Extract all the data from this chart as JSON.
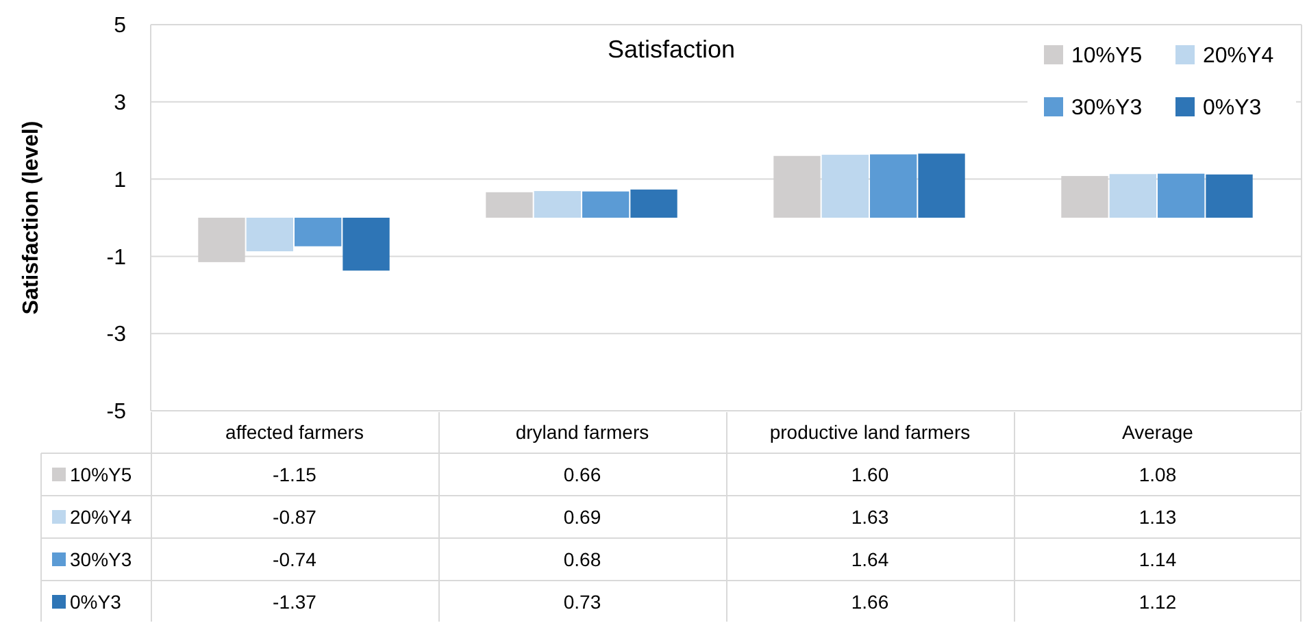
{
  "chart_data": {
    "type": "bar",
    "title": "Satisfaction",
    "ylabel": "Satisfaction (level)",
    "categories": [
      "affected farmers",
      "dryland farmers",
      "productive land farmers",
      "Average"
    ],
    "series": [
      {
        "name": "10%Y5",
        "color": "#d0cece",
        "values": [
          -1.15,
          0.66,
          1.6,
          1.08
        ],
        "value_labels": [
          "-1.15",
          "0.66",
          "1.60",
          "1.08"
        ]
      },
      {
        "name": "20%Y4",
        "color": "#bdd7ee",
        "values": [
          -0.87,
          0.69,
          1.63,
          1.13
        ],
        "value_labels": [
          "-0.87",
          "0.69",
          "1.63",
          "1.13"
        ]
      },
      {
        "name": "30%Y3",
        "color": "#5b9bd5",
        "values": [
          -0.74,
          0.68,
          1.64,
          1.14
        ],
        "value_labels": [
          "-0.74",
          "0.68",
          "1.64",
          "1.14"
        ]
      },
      {
        "name": "0%Y3",
        "color": "#2e75b6",
        "values": [
          -1.37,
          0.73,
          1.66,
          1.12
        ],
        "value_labels": [
          "-1.37",
          "0.73",
          "1.66",
          "1.12"
        ]
      }
    ],
    "ylim": [
      -5,
      5
    ],
    "yticks": [
      -5,
      -3,
      -1,
      1,
      3,
      5
    ],
    "grid": "y",
    "legend": "top right"
  }
}
